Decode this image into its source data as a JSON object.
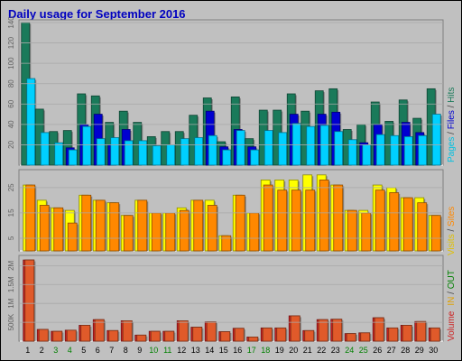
{
  "title": "Daily usage for September 2016",
  "colors": {
    "hits": "#1a7a5a",
    "files": "#0000d0",
    "pages": "#00d0ff",
    "visits": "#ffff00",
    "sites": "#ff8800",
    "kbytes": "#e05a2a",
    "volume_shade": "#cc2222",
    "bg": "#c0c0c0",
    "in": "#e0a000",
    "out": "#008000"
  },
  "legend": {
    "top": {
      "pages": "Pages",
      "s1": " / ",
      "files": "Files",
      "s2": " / ",
      "hits": "Hits"
    },
    "middle": {
      "visits": "Visits",
      "s1": " / ",
      "sites": "Sites"
    },
    "bottom": {
      "volume": "Volume",
      "in": "IN",
      "s1": " / ",
      "out": "OUT"
    }
  },
  "chart_data": [
    {
      "type": "bar",
      "name": "pages-files-hits",
      "categories": [
        "1",
        "2",
        "3",
        "4",
        "5",
        "6",
        "7",
        "8",
        "9",
        "10",
        "11",
        "12",
        "13",
        "14",
        "15",
        "16",
        "17",
        "18",
        "19",
        "20",
        "21",
        "22",
        "23",
        "24",
        "25",
        "26",
        "27",
        "28",
        "29",
        "30"
      ],
      "series": [
        {
          "name": "Hits",
          "values": [
            140,
            55,
            33,
            34,
            70,
            68,
            42,
            53,
            42,
            28,
            33,
            33,
            49,
            66,
            23,
            67,
            26,
            54,
            54,
            70,
            53,
            73,
            75,
            35,
            40,
            62,
            43,
            64,
            46,
            75
          ]
        },
        {
          "name": "Files",
          "values": [
            0,
            0,
            0,
            17,
            40,
            50,
            20,
            35,
            0,
            0,
            0,
            0,
            0,
            53,
            18,
            35,
            18,
            0,
            0,
            50,
            0,
            50,
            52,
            0,
            22,
            40,
            0,
            42,
            32,
            0
          ]
        },
        {
          "name": "Pages",
          "values": [
            85,
            32,
            22,
            15,
            38,
            26,
            27,
            24,
            24,
            19,
            20,
            26,
            27,
            29,
            15,
            34,
            15,
            34,
            32,
            41,
            38,
            39,
            33,
            25,
            20,
            30,
            29,
            28,
            29,
            50
          ]
        }
      ],
      "yticks": [
        20,
        40,
        60,
        80,
        100,
        120,
        140
      ],
      "ylim": [
        0,
        140
      ]
    },
    {
      "type": "bar",
      "name": "visits-sites",
      "categories": [
        "1",
        "2",
        "3",
        "4",
        "5",
        "6",
        "7",
        "8",
        "9",
        "10",
        "11",
        "12",
        "13",
        "14",
        "15",
        "16",
        "17",
        "18",
        "19",
        "20",
        "21",
        "22",
        "23",
        "24",
        "25",
        "26",
        "27",
        "28",
        "29",
        "30"
      ],
      "series": [
        {
          "name": "Visits",
          "values": [
            26,
            20,
            17,
            16,
            22,
            20,
            19,
            14,
            20,
            15,
            15,
            17,
            20,
            20,
            6,
            22,
            15,
            28,
            28,
            28,
            30,
            30,
            26,
            16,
            16,
            26,
            25,
            21,
            21,
            14
          ]
        },
        {
          "name": "Sites",
          "values": [
            26,
            18,
            17,
            11,
            22,
            20,
            19,
            14,
            20,
            15,
            15,
            16,
            20,
            18,
            6,
            22,
            15,
            26,
            24,
            24,
            24,
            28,
            26,
            16,
            15,
            24,
            23,
            21,
            19,
            14
          ]
        }
      ],
      "yticks": [
        5,
        15,
        25
      ],
      "ylim": [
        0,
        31
      ]
    },
    {
      "type": "bar",
      "name": "volume",
      "categories": [
        "1",
        "2",
        "3",
        "4",
        "5",
        "6",
        "7",
        "8",
        "9",
        "10",
        "11",
        "12",
        "13",
        "14",
        "15",
        "16",
        "17",
        "18",
        "19",
        "20",
        "21",
        "22",
        "23",
        "24",
        "25",
        "26",
        "27",
        "28",
        "29",
        "30"
      ],
      "series": [
        {
          "name": "Volume",
          "values": [
            2150,
            310,
            260,
            290,
            420,
            570,
            280,
            540,
            160,
            260,
            260,
            540,
            370,
            510,
            250,
            340,
            110,
            350,
            350,
            670,
            280,
            570,
            580,
            200,
            220,
            620,
            350,
            420,
            520,
            350
          ]
        }
      ],
      "yticks": [
        500,
        1000,
        1500,
        2000
      ],
      "ytick_labels": [
        "500K",
        "1M",
        "1.5M",
        "2M"
      ],
      "ylim": [
        0,
        2200
      ]
    }
  ],
  "x_labels": [
    {
      "t": "1",
      "c": "#000000"
    },
    {
      "t": "2",
      "c": "#000000"
    },
    {
      "t": "3",
      "c": "#008000"
    },
    {
      "t": "4",
      "c": "#008000"
    },
    {
      "t": "5",
      "c": "#000000"
    },
    {
      "t": "6",
      "c": "#000000"
    },
    {
      "t": "7",
      "c": "#000000"
    },
    {
      "t": "8",
      "c": "#000000"
    },
    {
      "t": "9",
      "c": "#000000"
    },
    {
      "t": "10",
      "c": "#008000"
    },
    {
      "t": "11",
      "c": "#008000"
    },
    {
      "t": "12",
      "c": "#000000"
    },
    {
      "t": "13",
      "c": "#000000"
    },
    {
      "t": "14",
      "c": "#000000"
    },
    {
      "t": "15",
      "c": "#000000"
    },
    {
      "t": "16",
      "c": "#000000"
    },
    {
      "t": "17",
      "c": "#008000"
    },
    {
      "t": "18",
      "c": "#008000"
    },
    {
      "t": "19",
      "c": "#000000"
    },
    {
      "t": "20",
      "c": "#000000"
    },
    {
      "t": "21",
      "c": "#000000"
    },
    {
      "t": "22",
      "c": "#000000"
    },
    {
      "t": "23",
      "c": "#000000"
    },
    {
      "t": "24",
      "c": "#008000"
    },
    {
      "t": "25",
      "c": "#008000"
    },
    {
      "t": "26",
      "c": "#000000"
    },
    {
      "t": "27",
      "c": "#000000"
    },
    {
      "t": "28",
      "c": "#000000"
    },
    {
      "t": "29",
      "c": "#000000"
    },
    {
      "t": "30",
      "c": "#000000"
    }
  ]
}
